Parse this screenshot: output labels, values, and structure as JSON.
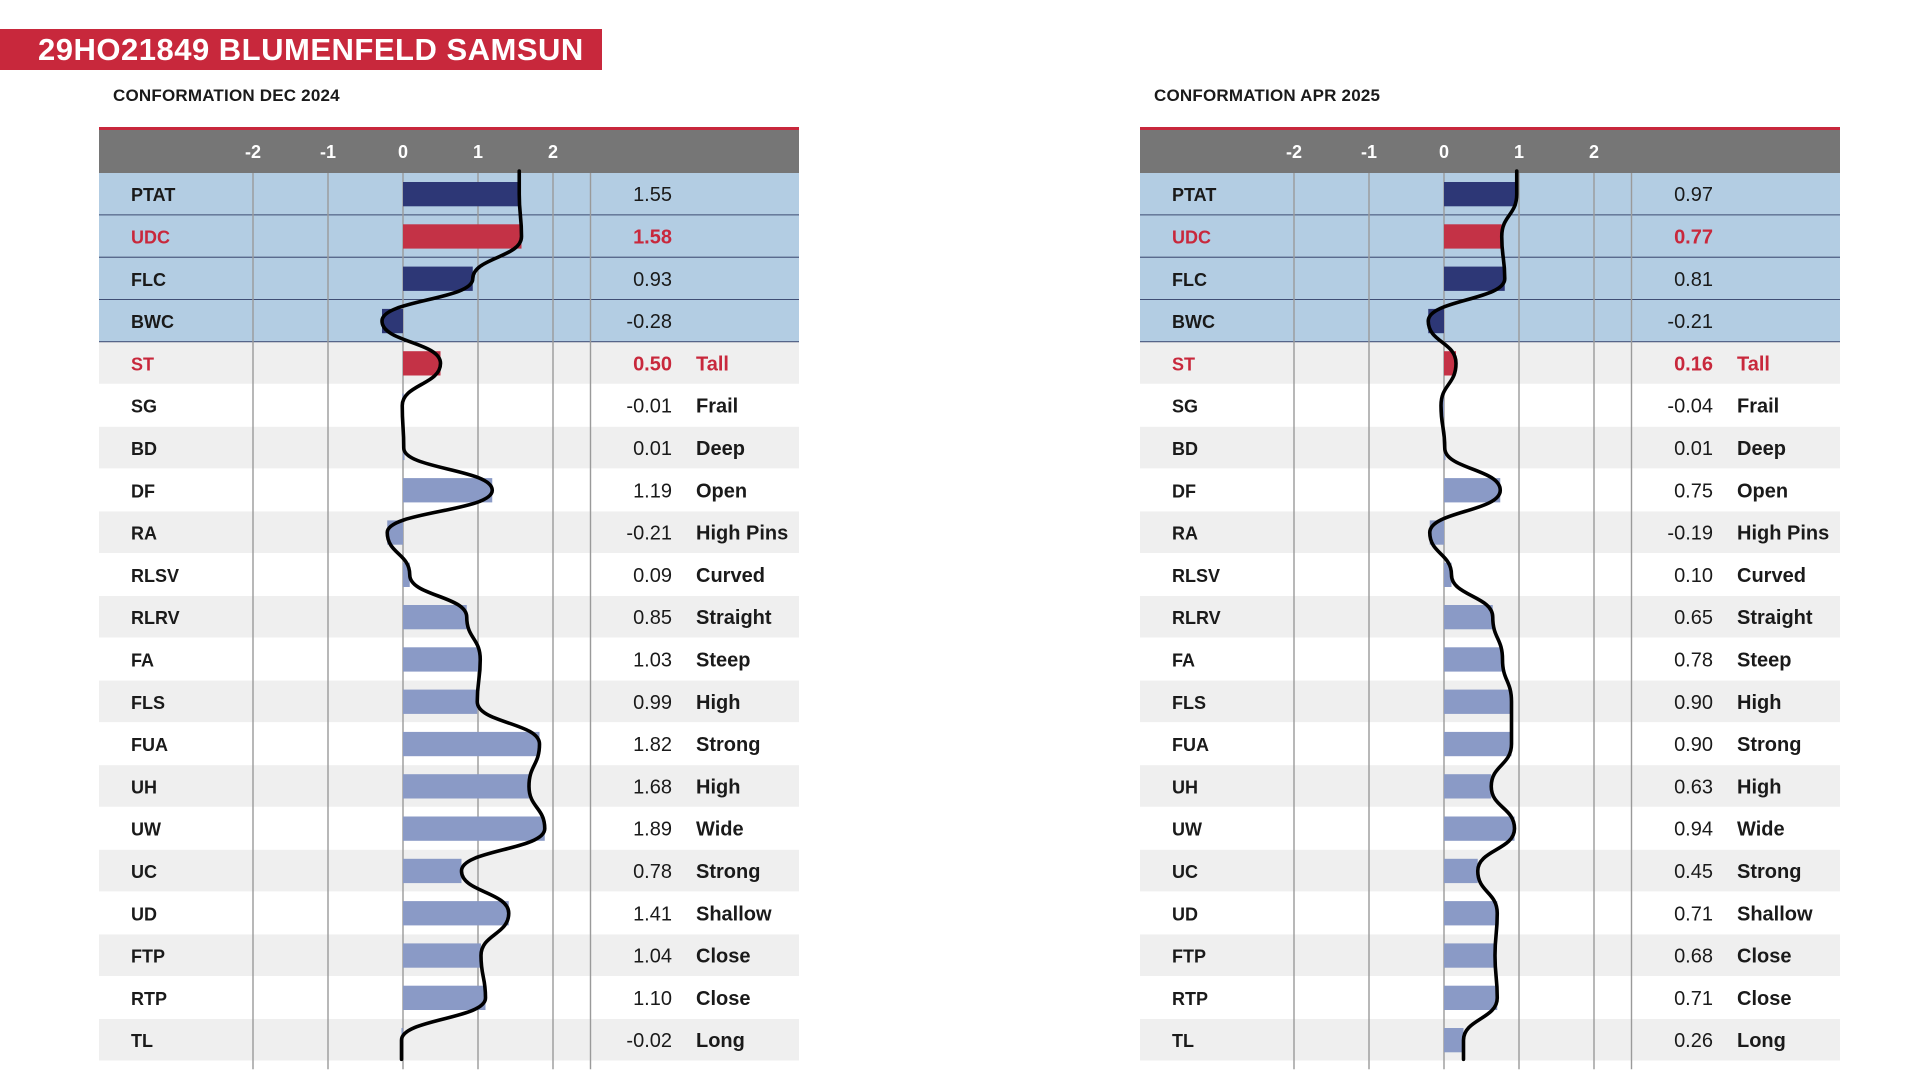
{
  "title": "29HO21849 BLUMENFELD SAMSUN",
  "colors": {
    "banner": "#c8283c",
    "header_bar": "#767676",
    "header_red_line": "#c8283c",
    "summary_row_bg": "#b3cde3",
    "shade_row_bg": "#efefef",
    "bar_summary": "#2d3776",
    "bar_highlight": "#c43246",
    "bar_trait": "#8a9ac6",
    "highlight_text": "#c8283c",
    "curve": "#000000"
  },
  "chart_data": [
    {
      "type": "bar",
      "orientation": "horizontal",
      "title": "CONFORMATION DEC 2024",
      "xticks": [
        "-2",
        "-1",
        "0",
        "1",
        "2"
      ],
      "xlim": [
        -2.5,
        3
      ],
      "grid": true,
      "categories": [
        "PTAT",
        "UDC",
        "FLC",
        "BWC",
        "ST",
        "SG",
        "BD",
        "DF",
        "RA",
        "RLSV",
        "RLRV",
        "FA",
        "FLS",
        "FUA",
        "UH",
        "UW",
        "UC",
        "UD",
        "FTP",
        "RTP",
        "TL"
      ],
      "values": [
        1.55,
        1.58,
        0.93,
        -0.28,
        0.5,
        -0.01,
        0.01,
        1.19,
        -0.21,
        0.09,
        0.85,
        1.03,
        0.99,
        1.82,
        1.68,
        1.89,
        0.78,
        1.41,
        1.04,
        1.1,
        -0.02
      ],
      "value_labels": [
        "1.55",
        "1.58",
        "0.93",
        "-0.28",
        "0.50",
        "-0.01",
        "0.01",
        "1.19",
        "-0.21",
        "0.09",
        "0.85",
        "1.03",
        "0.99",
        "1.82",
        "1.68",
        "1.89",
        "0.78",
        "1.41",
        "1.04",
        "1.10",
        "-0.02"
      ],
      "descriptors": [
        "",
        "",
        "",
        "",
        "Tall",
        "Frail",
        "Deep",
        "Open",
        "High Pins",
        "Curved",
        "Straight",
        "Steep",
        "High",
        "Strong",
        "High",
        "Wide",
        "Strong",
        "Shallow",
        "Close",
        "Close",
        "Long"
      ],
      "summary_rows": [
        "PTAT",
        "UDC",
        "FLC",
        "BWC"
      ],
      "highlight_rows": [
        "UDC",
        "ST"
      ]
    },
    {
      "type": "bar",
      "orientation": "horizontal",
      "title": "CONFORMATION APR 2025",
      "xticks": [
        "-2",
        "-1",
        "0",
        "1",
        "2"
      ],
      "xlim": [
        -2.5,
        3
      ],
      "grid": true,
      "categories": [
        "PTAT",
        "UDC",
        "FLC",
        "BWC",
        "ST",
        "SG",
        "BD",
        "DF",
        "RA",
        "RLSV",
        "RLRV",
        "FA",
        "FLS",
        "FUA",
        "UH",
        "UW",
        "UC",
        "UD",
        "FTP",
        "RTP",
        "TL"
      ],
      "values": [
        0.97,
        0.77,
        0.81,
        -0.21,
        0.16,
        -0.04,
        0.01,
        0.75,
        -0.19,
        0.1,
        0.65,
        0.78,
        0.9,
        0.9,
        0.63,
        0.94,
        0.45,
        0.71,
        0.68,
        0.71,
        0.26
      ],
      "value_labels": [
        "0.97",
        "0.77",
        "0.81",
        "-0.21",
        "0.16",
        "-0.04",
        "0.01",
        "0.75",
        "-0.19",
        "0.10",
        "0.65",
        "0.78",
        "0.90",
        "0.90",
        "0.63",
        "0.94",
        "0.45",
        "0.71",
        "0.68",
        "0.71",
        "0.26"
      ],
      "descriptors": [
        "",
        "",
        "",
        "",
        "Tall",
        "Frail",
        "Deep",
        "Open",
        "High Pins",
        "Curved",
        "Straight",
        "Steep",
        "High",
        "Strong",
        "High",
        "Wide",
        "Strong",
        "Shallow",
        "Close",
        "Close",
        "Long"
      ],
      "summary_rows": [
        "PTAT",
        "UDC",
        "FLC",
        "BWC"
      ],
      "highlight_rows": [
        "UDC",
        "ST"
      ]
    }
  ]
}
